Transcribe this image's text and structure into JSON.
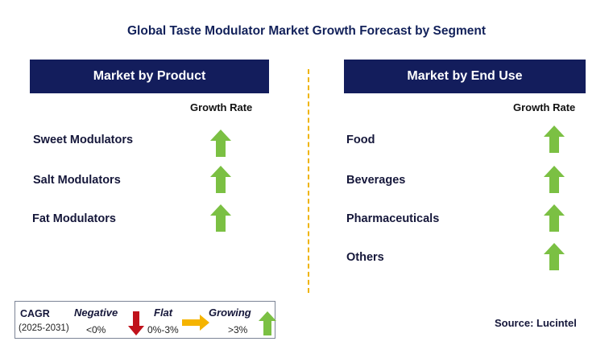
{
  "title": "Global Taste Modulator Market Growth Forecast by Segment",
  "left_panel": {
    "heading": "Market by Product",
    "growth_header": "Growth Rate",
    "items": [
      {
        "label": "Sweet Modulators",
        "trend": "growing"
      },
      {
        "label": "Salt Modulators",
        "trend": "growing"
      },
      {
        "label": "Fat Modulators",
        "trend": "growing"
      }
    ]
  },
  "right_panel": {
    "heading": "Market by End Use",
    "growth_header": "Growth Rate",
    "items": [
      {
        "label": "Food",
        "trend": "growing"
      },
      {
        "label": "Beverages",
        "trend": "growing"
      },
      {
        "label": "Pharmaceuticals",
        "trend": "growing"
      },
      {
        "label": "Others",
        "trend": "growing"
      }
    ]
  },
  "legend": {
    "cagr_label": "CAGR",
    "period": "(2025-2031)",
    "negative_label": "Negative",
    "negative_range": "<0%",
    "flat_label": "Flat",
    "flat_range": "0%-3%",
    "growing_label": "Growing",
    "growing_range": ">3%"
  },
  "source": "Source: Lucintel",
  "colors": {
    "header_bg": "#131d5c",
    "growing_arrow": "#7bc043",
    "negative_arrow": "#c0121b",
    "flat_arrow": "#f5b400",
    "divider": "#f0b400"
  }
}
